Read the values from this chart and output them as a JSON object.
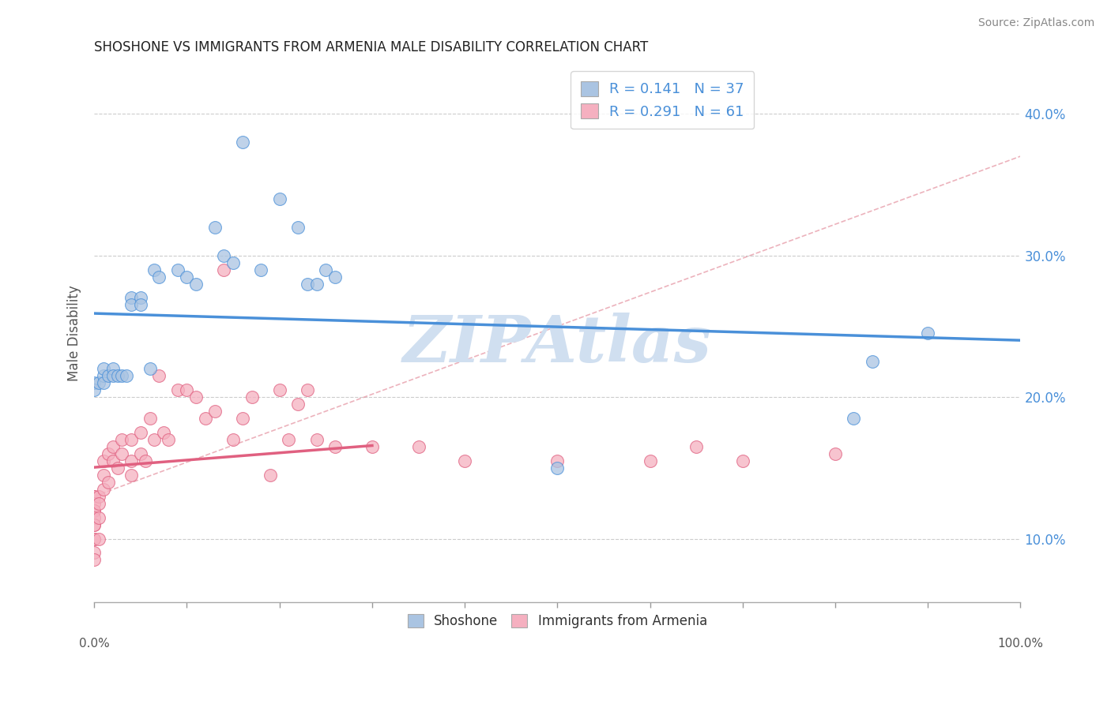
{
  "title": "SHOSHONE VS IMMIGRANTS FROM ARMENIA MALE DISABILITY CORRELATION CHART",
  "source": "Source: ZipAtlas.com",
  "ylabel": "Male Disability",
  "xlim": [
    0.0,
    1.0
  ],
  "ylim": [
    0.055,
    0.435
  ],
  "y_ticks": [
    0.1,
    0.2,
    0.3,
    0.4
  ],
  "shoshone_R": 0.141,
  "shoshone_N": 37,
  "armenia_R": 0.291,
  "armenia_N": 61,
  "shoshone_color": "#aac4e2",
  "shoshone_line_color": "#4a90d9",
  "shoshone_edge_color": "#4a90d9",
  "armenia_color": "#f5b0c0",
  "armenia_line_color": "#e06080",
  "armenia_edge_color": "#e06080",
  "diagonal_color": "#e08090",
  "grid_color": "#cccccc",
  "background_color": "#ffffff",
  "legend_text_color": "#4a90d9",
  "watermark_color": "#d0dff0",
  "shoshone_x": [
    0.0,
    0.0,
    0.005,
    0.01,
    0.01,
    0.01,
    0.015,
    0.02,
    0.02,
    0.025,
    0.03,
    0.035,
    0.04,
    0.04,
    0.05,
    0.05,
    0.06,
    0.065,
    0.07,
    0.09,
    0.1,
    0.11,
    0.13,
    0.14,
    0.15,
    0.16,
    0.18,
    0.2,
    0.22,
    0.23,
    0.24,
    0.25,
    0.26,
    0.5,
    0.82,
    0.84,
    0.9
  ],
  "shoshone_y": [
    0.21,
    0.205,
    0.21,
    0.215,
    0.22,
    0.21,
    0.215,
    0.22,
    0.215,
    0.215,
    0.215,
    0.215,
    0.27,
    0.265,
    0.27,
    0.265,
    0.22,
    0.29,
    0.285,
    0.29,
    0.285,
    0.28,
    0.32,
    0.3,
    0.295,
    0.38,
    0.29,
    0.34,
    0.32,
    0.28,
    0.28,
    0.29,
    0.285,
    0.15,
    0.185,
    0.225,
    0.245
  ],
  "armenia_x": [
    0.0,
    0.0,
    0.0,
    0.0,
    0.0,
    0.0,
    0.0,
    0.0,
    0.0,
    0.0,
    0.0,
    0.0,
    0.005,
    0.005,
    0.005,
    0.005,
    0.01,
    0.01,
    0.01,
    0.015,
    0.015,
    0.02,
    0.02,
    0.025,
    0.03,
    0.03,
    0.04,
    0.04,
    0.04,
    0.05,
    0.05,
    0.055,
    0.06,
    0.065,
    0.07,
    0.075,
    0.08,
    0.09,
    0.1,
    0.11,
    0.12,
    0.13,
    0.14,
    0.15,
    0.16,
    0.17,
    0.19,
    0.2,
    0.21,
    0.22,
    0.23,
    0.24,
    0.26,
    0.3,
    0.35,
    0.4,
    0.5,
    0.6,
    0.65,
    0.7,
    0.8
  ],
  "armenia_y": [
    0.13,
    0.13,
    0.125,
    0.12,
    0.12,
    0.115,
    0.11,
    0.11,
    0.1,
    0.1,
    0.09,
    0.085,
    0.13,
    0.125,
    0.115,
    0.1,
    0.155,
    0.145,
    0.135,
    0.16,
    0.14,
    0.165,
    0.155,
    0.15,
    0.17,
    0.16,
    0.17,
    0.155,
    0.145,
    0.175,
    0.16,
    0.155,
    0.185,
    0.17,
    0.215,
    0.175,
    0.17,
    0.205,
    0.205,
    0.2,
    0.185,
    0.19,
    0.29,
    0.17,
    0.185,
    0.2,
    0.145,
    0.205,
    0.17,
    0.195,
    0.205,
    0.17,
    0.165,
    0.165,
    0.165,
    0.155,
    0.155,
    0.155,
    0.165,
    0.155,
    0.16
  ]
}
